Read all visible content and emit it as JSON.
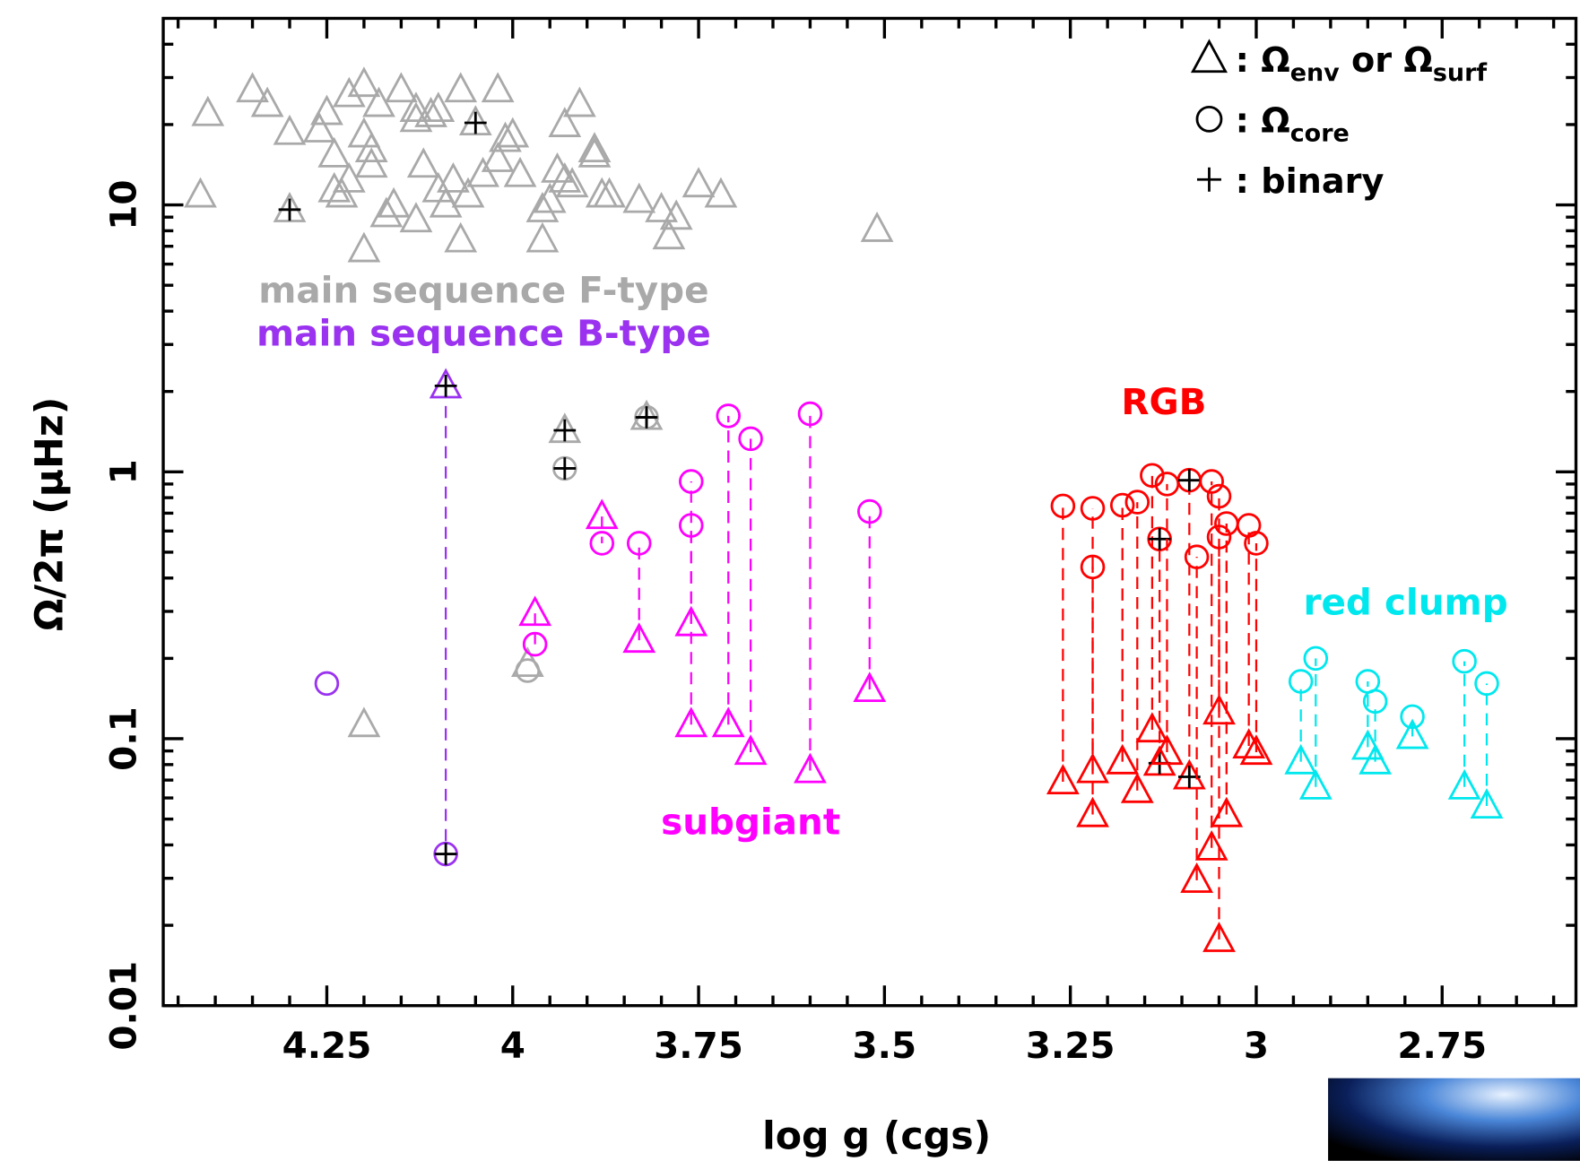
{
  "chart_data": {
    "type": "scatter",
    "xlabel": "log g (cgs)",
    "ylabel": "Ω/2π (μHz)",
    "xlim": [
      4.47,
      2.57
    ],
    "ylim": [
      0.01,
      50
    ],
    "ylog": true,
    "xticks": [
      4.25,
      4,
      3.75,
      3.5,
      3.25,
      3,
      2.75
    ],
    "yticks": [
      0.01,
      0.1,
      1,
      10
    ],
    "xminorticks": [
      4.45,
      4.4,
      4.35,
      4.3,
      4.2,
      4.15,
      4.1,
      4.05,
      3.95,
      3.9,
      3.85,
      3.8,
      3.7,
      3.65,
      3.6,
      3.55,
      3.45,
      3.4,
      3.35,
      3.3,
      3.2,
      3.15,
      3.1,
      3.05,
      2.95,
      2.9,
      2.85,
      2.8,
      2.7,
      2.65,
      2.6
    ],
    "yminorticks": [
      0.02,
      0.03,
      0.04,
      0.05,
      0.06,
      0.07,
      0.08,
      0.09,
      0.2,
      0.3,
      0.4,
      0.5,
      0.6,
      0.7,
      0.8,
      0.9,
      2,
      3,
      4,
      5,
      6,
      7,
      8,
      9,
      20,
      30,
      40
    ],
    "legend": {
      "position": "upper right",
      "entries": [
        {
          "marker": "triangle",
          "label_parts": [
            ": Ω",
            "env",
            " or Ω",
            "surf"
          ]
        },
        {
          "marker": "circle",
          "label_parts": [
            ": Ω",
            "core"
          ]
        },
        {
          "marker": "plus",
          "label_parts": [
            ": binary"
          ]
        }
      ]
    },
    "series": [
      {
        "name": "main sequence F-type",
        "color": "#a9a9a9",
        "x": [
          4.41,
          4.42,
          4.35,
          4.33,
          4.3,
          4.3,
          4.26,
          4.25,
          4.24,
          4.24,
          4.23,
          4.22,
          4.22,
          4.2,
          4.2,
          4.2,
          4.19,
          4.19,
          4.18,
          4.17,
          4.16,
          4.15,
          4.13,
          4.13,
          4.13,
          4.12,
          4.11,
          4.1,
          4.1,
          4.09,
          4.08,
          4.07,
          4.07,
          4.06,
          4.05,
          4.04,
          4.02,
          4.02,
          4.01,
          4.0,
          3.99,
          3.96,
          3.96,
          3.95,
          3.94,
          3.93,
          3.93,
          3.92,
          3.91,
          3.89,
          3.89,
          3.88,
          3.87,
          3.83,
          3.8,
          3.79,
          3.78,
          3.75,
          3.72,
          3.51,
          3.93,
          3.82,
          3.98,
          4.2
        ],
        "values": [
          22,
          10.9,
          27,
          23.8,
          18.7,
          9.6,
          19.1,
          22.2,
          11.4,
          15.4,
          10.9,
          12.4,
          25.9,
          28.3,
          6.8,
          18.3,
          14.1,
          16.1,
          23.8,
          9.2,
          10,
          27,
          8.8,
          20.9,
          22.8,
          14.1,
          21.8,
          22.8,
          11.4,
          10,
          12.4,
          7.4,
          27,
          10.9,
          20.3,
          13,
          27,
          14.8,
          17.6,
          18.3,
          13,
          9.6,
          7.4,
          10.4,
          13.5,
          20,
          12.4,
          11.9,
          23.8,
          15.4,
          16.1,
          10.9,
          10.9,
          10.4,
          9.6,
          7.6,
          9,
          11.9,
          10.9,
          8.1,
          1.43,
          1.6,
          0.19,
          0.113
        ],
        "core": [
          null,
          null,
          null,
          null,
          null,
          null,
          null,
          null,
          null,
          null,
          null,
          null,
          null,
          null,
          null,
          null,
          null,
          null,
          null,
          null,
          null,
          null,
          null,
          null,
          null,
          null,
          null,
          null,
          null,
          null,
          null,
          null,
          null,
          null,
          null,
          null,
          null,
          null,
          null,
          null,
          null,
          null,
          null,
          null,
          null,
          null,
          null,
          null,
          null,
          null,
          null,
          null,
          null,
          null,
          null,
          null,
          null,
          null,
          null,
          null,
          1.03,
          1.6,
          0.18,
          null
        ],
        "binary": [
          false,
          false,
          false,
          false,
          false,
          true,
          false,
          false,
          false,
          false,
          false,
          false,
          false,
          false,
          false,
          false,
          false,
          false,
          false,
          false,
          false,
          false,
          false,
          false,
          false,
          false,
          false,
          false,
          false,
          false,
          false,
          false,
          false,
          false,
          true,
          false,
          false,
          false,
          false,
          false,
          false,
          false,
          false,
          false,
          false,
          false,
          false,
          false,
          false,
          false,
          false,
          false,
          false,
          false,
          false,
          false,
          false,
          false,
          false,
          false,
          true,
          true,
          false,
          false
        ]
      },
      {
        "name": "main sequence B-type",
        "color": "#9a32f0",
        "linestyle": "dashed",
        "x": [
          4.25,
          4.09
        ],
        "values": [
          null,
          2.1
        ],
        "core": [
          0.161,
          0.037
        ],
        "binary": [
          false,
          true
        ]
      },
      {
        "name": "subgiant",
        "color": "#ff00ff",
        "linestyle": "dashed",
        "x": [
          3.88,
          3.97,
          3.83,
          3.76,
          3.76,
          3.71,
          3.68,
          3.6,
          3.52
        ],
        "values": [
          0.68,
          0.295,
          0.234,
          0.27,
          0.113,
          0.113,
          0.089,
          0.076,
          0.153
        ],
        "core": [
          0.54,
          0.226,
          0.54,
          0.92,
          0.63,
          1.62,
          1.33,
          1.65,
          0.71
        ],
        "binary": [
          false,
          false,
          false,
          false,
          false,
          false,
          false,
          false,
          false
        ]
      },
      {
        "name": "RGB",
        "color": "#ff0000",
        "linestyle": "dashed",
        "x": [
          3.26,
          3.22,
          3.22,
          3.18,
          3.16,
          3.14,
          3.13,
          3.12,
          3.09,
          3.08,
          3.06,
          3.05,
          3.05,
          3.04,
          3.01,
          3.0
        ],
        "values": [
          0.069,
          0.076,
          0.052,
          0.082,
          0.064,
          0.108,
          0.081,
          0.089,
          0.072,
          0.0295,
          0.039,
          0.126,
          0.0177,
          0.052,
          0.094,
          0.089
        ],
        "core": [
          0.745,
          0.73,
          0.44,
          0.75,
          0.77,
          0.97,
          0.56,
          0.9,
          0.93,
          0.48,
          0.92,
          0.81,
          0.57,
          0.64,
          0.63,
          0.54
        ],
        "binary": [
          false,
          false,
          false,
          false,
          false,
          false,
          true,
          false,
          true,
          false,
          false,
          false,
          false,
          false,
          false,
          false
        ]
      },
      {
        "name": "red clump",
        "color": "#00e8ee",
        "linestyle": "dashed",
        "x": [
          2.94,
          2.92,
          2.85,
          2.84,
          2.79,
          2.72,
          2.69
        ],
        "values": [
          0.082,
          0.066,
          0.093,
          0.082,
          0.102,
          0.066,
          0.056
        ],
        "core": [
          0.164,
          0.2,
          0.164,
          0.138,
          0.121,
          0.195,
          0.161
        ],
        "binary": [
          false,
          false,
          false,
          false,
          false,
          false,
          false
        ]
      }
    ]
  }
}
